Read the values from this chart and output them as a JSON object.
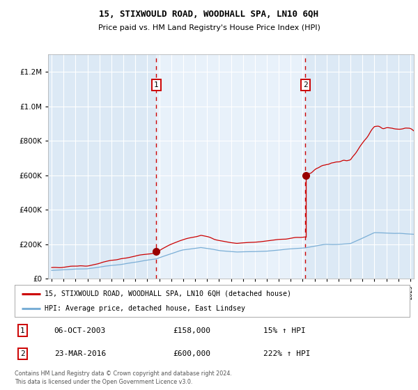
{
  "title": "15, STIXWOULD ROAD, WOODHALL SPA, LN10 6QH",
  "subtitle": "Price paid vs. HM Land Registry's House Price Index (HPI)",
  "legend_line1": "15, STIXWOULD ROAD, WOODHALL SPA, LN10 6QH (detached house)",
  "legend_line2": "HPI: Average price, detached house, East Lindsey",
  "table_rows": [
    {
      "num": "1",
      "date": "06-OCT-2003",
      "price": "£158,000",
      "hpi": "15% ↑ HPI"
    },
    {
      "num": "2",
      "date": "23-MAR-2016",
      "price": "£600,000",
      "hpi": "222% ↑ HPI"
    }
  ],
  "footnote1": "Contains HM Land Registry data © Crown copyright and database right 2024.",
  "footnote2": "This data is licensed under the Open Government Licence v3.0.",
  "year_start": 1995,
  "year_end": 2025,
  "ylim_max": 1300000,
  "sale1_year": 2003.75,
  "sale1_price": 158000,
  "sale2_year": 2016.22,
  "sale2_price": 600000,
  "background_color": "#ffffff",
  "plot_bg_color": "#dce9f5",
  "highlight_bg_color": "#e8f1fa",
  "grid_color": "#ffffff",
  "red_line_color": "#cc0000",
  "blue_line_color": "#7aaed6",
  "dashed_line_color": "#cc0000",
  "sale_dot_color": "#990000",
  "box_color": "#cc0000"
}
